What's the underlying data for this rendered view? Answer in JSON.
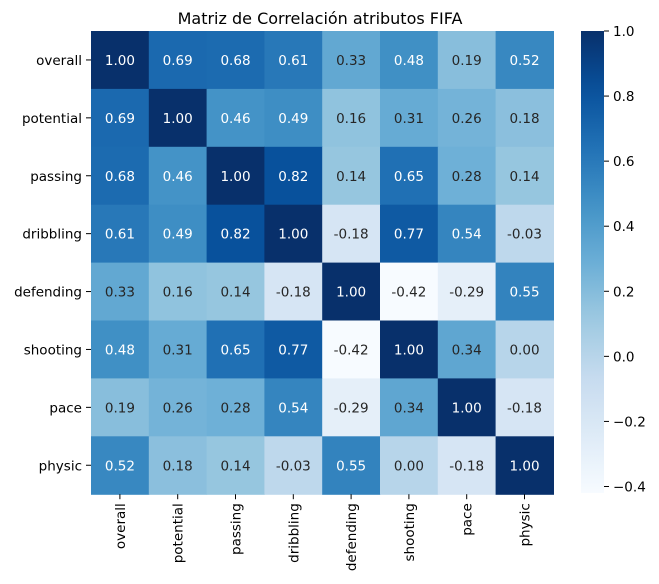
{
  "chart_data": {
    "type": "heatmap",
    "title": "Matriz de Correlación atributos FIFA",
    "xlabel": "",
    "ylabel": "",
    "row_labels": [
      "overall",
      "potential",
      "passing",
      "dribbling",
      "defending",
      "shooting",
      "pace",
      "physic"
    ],
    "col_labels": [
      "overall",
      "potential",
      "passing",
      "dribbling",
      "defending",
      "shooting",
      "pace",
      "physic"
    ],
    "values": [
      [
        1.0,
        0.69,
        0.68,
        0.61,
        0.33,
        0.48,
        0.19,
        0.52
      ],
      [
        0.69,
        1.0,
        0.46,
        0.49,
        0.16,
        0.31,
        0.26,
        0.18
      ],
      [
        0.68,
        0.46,
        1.0,
        0.82,
        0.14,
        0.65,
        0.28,
        0.14
      ],
      [
        0.61,
        0.49,
        0.82,
        1.0,
        -0.18,
        0.77,
        0.54,
        -0.03
      ],
      [
        0.33,
        0.16,
        0.14,
        -0.18,
        1.0,
        -0.42,
        -0.29,
        0.55
      ],
      [
        0.48,
        0.31,
        0.65,
        0.77,
        -0.42,
        1.0,
        0.34,
        -0.0
      ],
      [
        0.19,
        0.26,
        0.28,
        0.54,
        -0.29,
        0.34,
        1.0,
        -0.18
      ],
      [
        0.52,
        0.18,
        0.14,
        -0.03,
        0.55,
        -0.0,
        -0.18,
        1.0
      ]
    ],
    "annotation_format": "2 decimals",
    "colormap": "Blues",
    "colorbar": {
      "range": [
        -0.42,
        1.0
      ],
      "ticks": [
        -0.4,
        -0.2,
        0.0,
        0.2,
        0.4,
        0.6,
        0.8,
        1.0
      ],
      "tick_labels": [
        "−0.4",
        "−0.2",
        "0.0",
        "0.2",
        "0.4",
        "0.6",
        "0.8",
        "1.0"
      ]
    },
    "grid": false
  }
}
